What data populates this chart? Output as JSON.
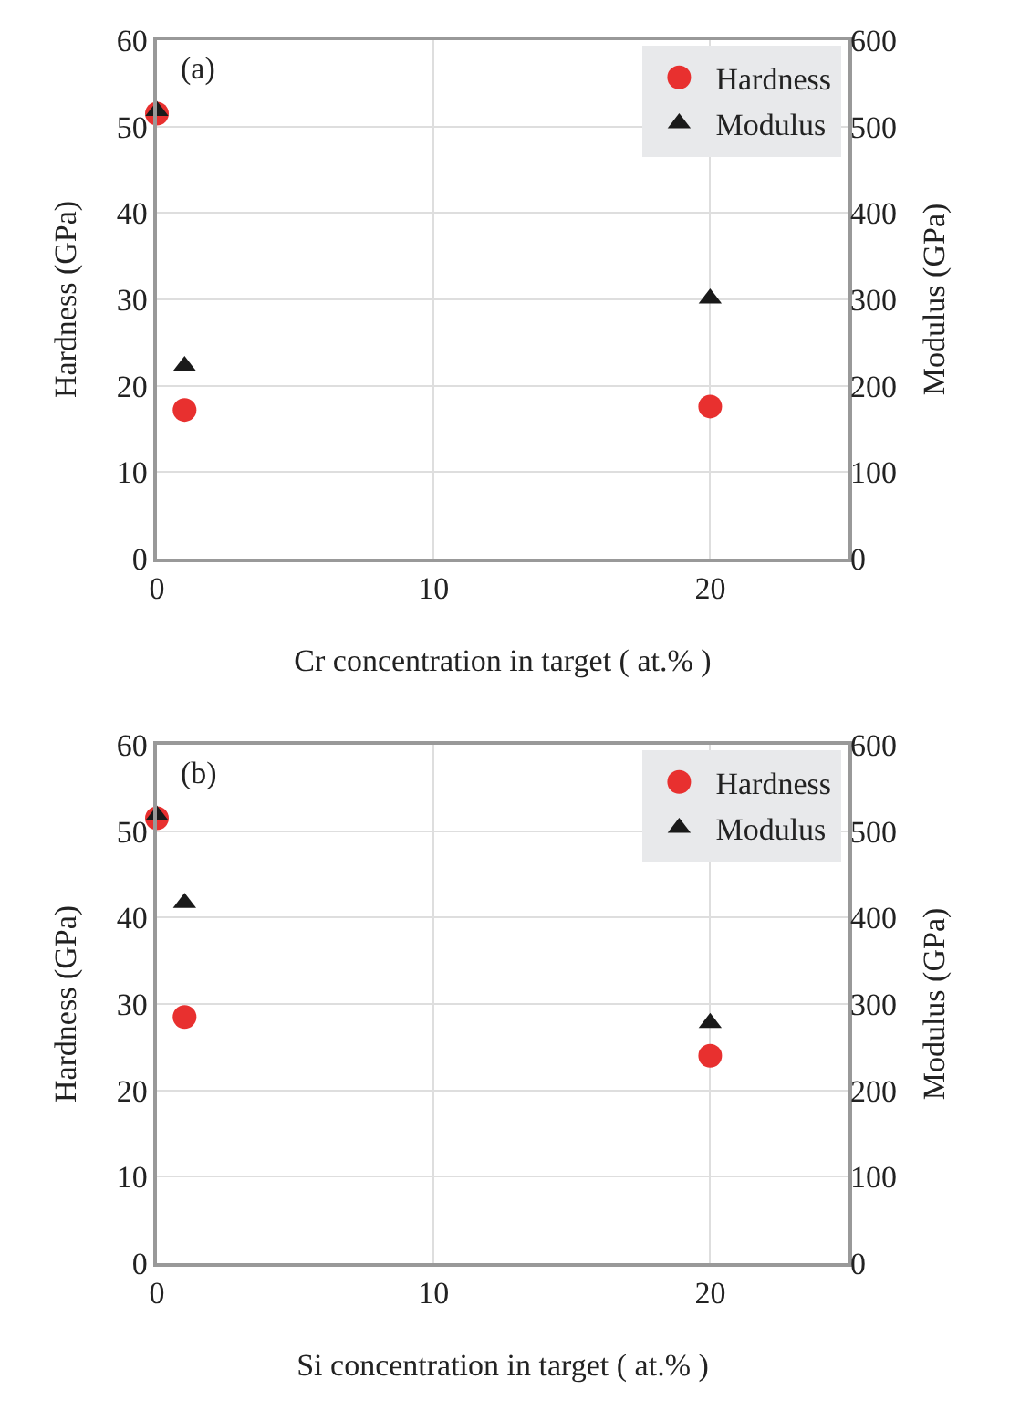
{
  "chart_data": [
    {
      "type": "scatter",
      "annotations": [
        "(a)"
      ],
      "xlabel": "Cr concentration in target ( at.% )",
      "ylabel": "Hardness (GPa)",
      "y2label": "Modulus (GPa)",
      "x": [
        0,
        1,
        20
      ],
      "xlim": [
        0,
        25
      ],
      "xticks": [
        0,
        10,
        20
      ],
      "ylim": [
        0,
        60
      ],
      "yticks": [
        0,
        10,
        20,
        30,
        40,
        50,
        60
      ],
      "y2lim": [
        0,
        600
      ],
      "y2ticks": [
        0,
        100,
        200,
        300,
        400,
        500,
        600
      ],
      "grid": true,
      "legend": "top right",
      "series": [
        {
          "name": "Hardness",
          "color": "#e8302f",
          "marker": "circle",
          "values": [
            51.5,
            17.2,
            17.6
          ]
        },
        {
          "name": "Modulus",
          "color": "#1a1a1a",
          "marker": "triangle",
          "axis": "y2",
          "values": [
            518,
            223,
            301
          ]
        }
      ]
    },
    {
      "type": "scatter",
      "annotations": [
        "(b)"
      ],
      "xlabel": "Si concentration in target ( at.% )",
      "ylabel": "Hardness (GPa)",
      "y2label": "Modulus (GPa)",
      "x": [
        0,
        1,
        20
      ],
      "xlim": [
        0,
        25
      ],
      "xticks": [
        0,
        10,
        20
      ],
      "ylim": [
        0,
        60
      ],
      "yticks": [
        0,
        10,
        20,
        30,
        40,
        50,
        60
      ],
      "y2lim": [
        0,
        600
      ],
      "y2ticks": [
        0,
        100,
        200,
        300,
        400,
        500,
        600
      ],
      "grid": true,
      "legend": "top right",
      "series": [
        {
          "name": "Hardness",
          "color": "#e8302f",
          "marker": "circle",
          "values": [
            51.5,
            28.5,
            24
          ]
        },
        {
          "name": "Modulus",
          "color": "#1a1a1a",
          "marker": "triangle",
          "axis": "y2",
          "values": [
            518,
            417,
            278
          ]
        }
      ]
    }
  ]
}
